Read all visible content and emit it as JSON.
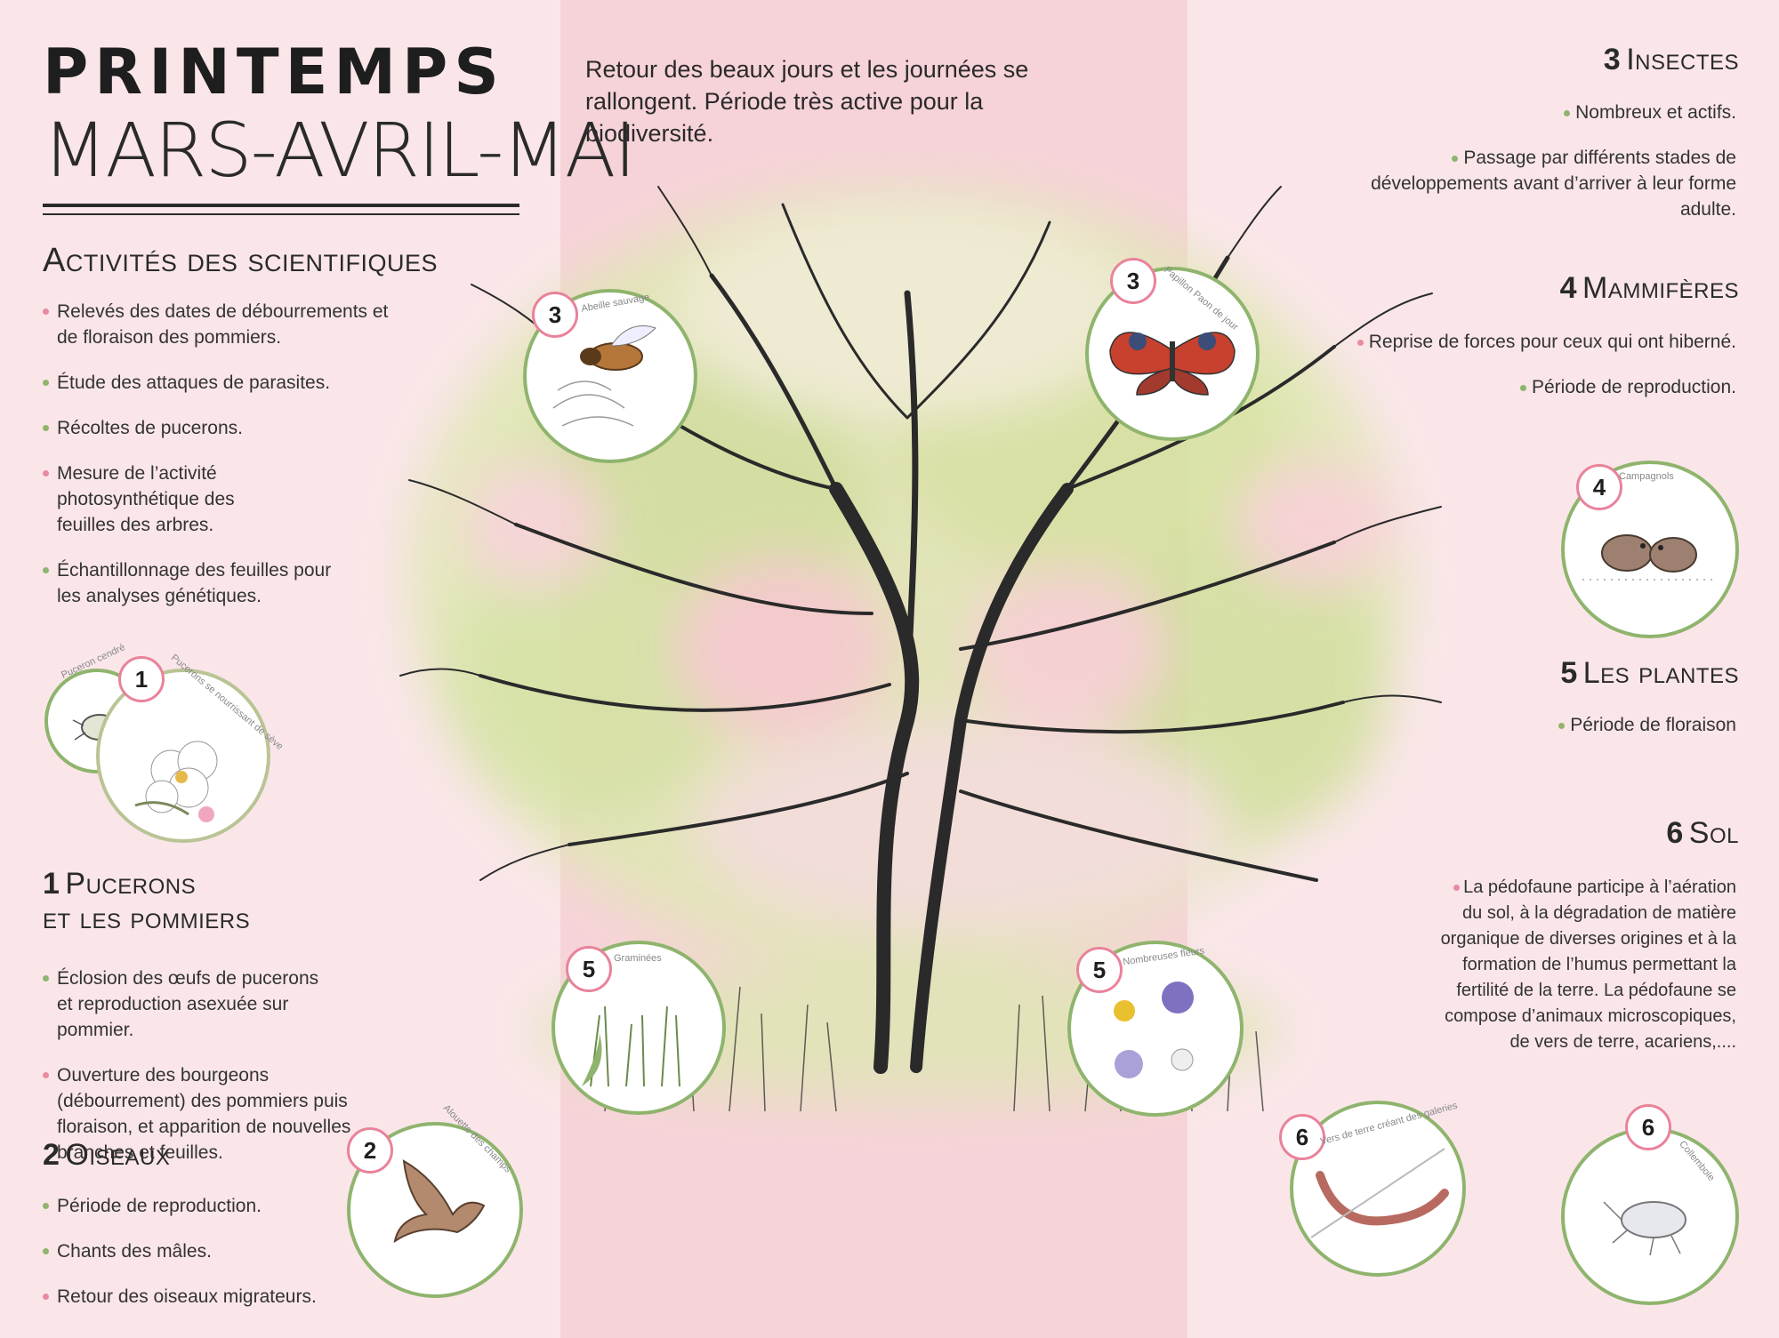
{
  "header": {
    "title": "PRINTEMPS",
    "subtitle": "MARS-AVRIL-MAI",
    "intro": "Retour des beaux jours et les journées se rallongent. Période très active pour la biodiversité."
  },
  "colors": {
    "pink_dot": "#e98aa0",
    "green_dot": "#8fb46d",
    "band": "#f6d3d8",
    "background": "#fae6e9"
  },
  "scientists": {
    "heading": "Activités des scientifiques",
    "items": [
      "Relevés des dates de débourrements et de floraison des pommiers.",
      "Étude des attaques de parasites.",
      "Récoltes de pucerons.",
      "Mesure de l’activité photosynthétique des feuilles des arbres.",
      "Échantillonnage des feuilles pour les analyses génétiques."
    ]
  },
  "aphids": {
    "number": "1",
    "heading_line1": "Pucerons",
    "heading_line2": "et les pommiers",
    "items": [
      "Éclosion des œufs de pucerons et reproduction asexuée sur pommier.",
      "Ouverture des bourgeons (débourrement) des pommiers puis floraison, et apparition de nouvelles branches et  feuilles."
    ]
  },
  "birds": {
    "number": "2",
    "heading": "Oiseaux",
    "items": [
      "Période de reproduction.",
      "Chants des mâles.",
      "Retour des oiseaux migrateurs."
    ]
  },
  "insects": {
    "number": "3",
    "heading": "Insectes",
    "items": [
      "Nombreux et actifs.",
      "Passage par différents stades de développements avant d’arriver à leur forme adulte."
    ]
  },
  "mammals": {
    "number": "4",
    "heading": "Mammifères",
    "items": [
      "Reprise de forces pour ceux qui ont hiberné.",
      "Période de reproduction."
    ]
  },
  "plants": {
    "number": "5",
    "heading": "Les plantes",
    "items": [
      "Période de floraison"
    ]
  },
  "soil": {
    "number": "6",
    "heading": "Sol",
    "text": "La pédofaune participe à l’aération du sol, à la dégradation de matière organique de diverses origines et à la formation de l’humus permettant la fertilité de la terre. La pédofaune se compose d’animaux microscopiques, de vers de terre, acariens,...."
  },
  "illustrations": {
    "aphid_small": {
      "label": "Puceron cendré"
    },
    "aphid_large": {
      "number": "1",
      "label": "Pucerons se nourrissant de sève"
    },
    "lark": {
      "number": "2",
      "label": "Alouette des champs"
    },
    "bee": {
      "number": "3",
      "label": "Abeille sauvage"
    },
    "butterfly": {
      "number": "3",
      "label": "Papillon Paon de jour"
    },
    "voles": {
      "number": "4",
      "label": "Campagnols"
    },
    "grasses": {
      "number": "5",
      "label": "Graminées"
    },
    "flowers": {
      "number": "5",
      "label": "Nombreuses fleurs"
    },
    "earthworm": {
      "number": "6",
      "label": "Vers de terre créant des galeries"
    },
    "springtail": {
      "number": "6",
      "label": "Collembole"
    }
  }
}
